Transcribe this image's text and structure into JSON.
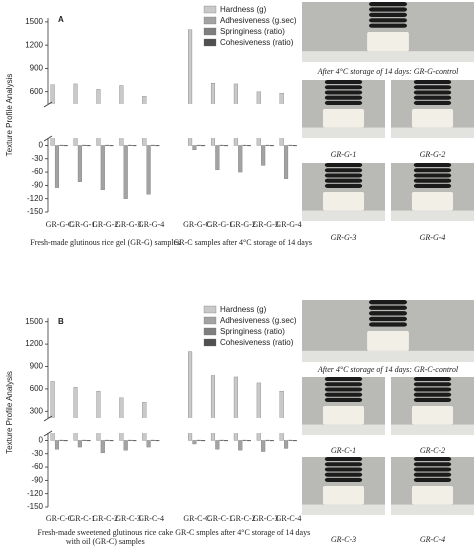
{
  "chart_data": [
    {
      "type": "bar",
      "panel": "A",
      "y_label": "Texture Profile Analysis",
      "categories": [
        "GR-G-C",
        "GR-G-1",
        "GR-G-2",
        "GR-G-3",
        "GR-G-4",
        "GR-G-C",
        "GR-G-1",
        "GR-G-2",
        "GR-G-3",
        "GR-G-4"
      ],
      "group_labels": [
        [
          "Fresh-made glutinous rice gel (GR-G) samples"
        ],
        [
          "GR-C samples after 4°C storage of 14 days"
        ]
      ],
      "series": [
        {
          "name": "Hardness (g)",
          "color": "#c9c9c9",
          "values": [
            690,
            700,
            630,
            680,
            540,
            1400,
            710,
            700,
            600,
            580
          ]
        },
        {
          "name": "Adhesiveness (g.sec)",
          "color": "#a3a3a3",
          "values": [
            -95,
            -82,
            -100,
            -120,
            -110,
            -10,
            -55,
            -60,
            -45,
            -75
          ]
        },
        {
          "name": "Springiness (ratio)",
          "color": "#7f7f7f",
          "values": [
            0.9,
            0.9,
            0.9,
            0.9,
            0.9,
            0.9,
            0.9,
            0.9,
            0.9,
            0.9
          ]
        },
        {
          "name": "Cohesiveness (ratio)",
          "color": "#505050",
          "values": [
            0.6,
            0.6,
            0.6,
            0.6,
            0.6,
            0.6,
            0.6,
            0.6,
            0.6,
            0.6
          ]
        }
      ],
      "ylim": [
        -150,
        1550
      ],
      "ybreak": [
        10,
        480
      ],
      "yticks": [
        -150,
        -120,
        -90,
        -60,
        -30,
        0,
        600,
        900,
        1200,
        1500
      ],
      "legend": "top-right",
      "photo_captions": [
        "After 4°C storage of 14 days: GR-G-control",
        "GR-G-1",
        "GR-G-2",
        "GR-G-3",
        "GR-G-4"
      ]
    },
    {
      "type": "bar",
      "panel": "B",
      "y_label": "Texture Profile Analysis",
      "categories": [
        "GR-C-C",
        "GR-C-1",
        "GR-C-2",
        "GR-C-3",
        "GR-C-4",
        "GR-C-C",
        "GR-C-1",
        "GR-C-2",
        "GR-C-3",
        "GR-C-4"
      ],
      "group_labels": [
        [
          "Fresh-made sweetened glutinous rice cake",
          "with oil (GR-C) samples"
        ],
        [
          "GR-C smples after 4°C storage of 14 days"
        ]
      ],
      "series": [
        {
          "name": "Hardness (g)",
          "color": "#c9c9c9",
          "values": [
            700,
            620,
            570,
            480,
            420,
            1100,
            780,
            760,
            680,
            570
          ]
        },
        {
          "name": "Adhesiveness (g.sec)",
          "color": "#a3a3a3",
          "values": [
            -20,
            -15,
            -28,
            -22,
            -15,
            -8,
            -20,
            -22,
            -25,
            -18
          ]
        },
        {
          "name": "Springiness (ratio)",
          "color": "#7f7f7f",
          "values": [
            0.9,
            0.9,
            0.9,
            0.9,
            0.9,
            0.9,
            0.9,
            0.9,
            0.9,
            0.9
          ]
        },
        {
          "name": "Cohesiveness (ratio)",
          "color": "#505050",
          "values": [
            0.6,
            0.6,
            0.6,
            0.6,
            0.6,
            0.6,
            0.6,
            0.6,
            0.6,
            0.6
          ]
        }
      ],
      "ylim": [
        -150,
        1550
      ],
      "ybreak": [
        10,
        250
      ],
      "yticks": [
        -150,
        -120,
        -90,
        -60,
        -30,
        0,
        300,
        600,
        900,
        1200,
        1500
      ],
      "legend": "top-right",
      "photo_captions": [
        "After 4°C storage of 14 days: GR-C-control",
        "GR-C-1",
        "GR-C-2",
        "GR-C-3",
        "GR-C-4"
      ]
    }
  ]
}
